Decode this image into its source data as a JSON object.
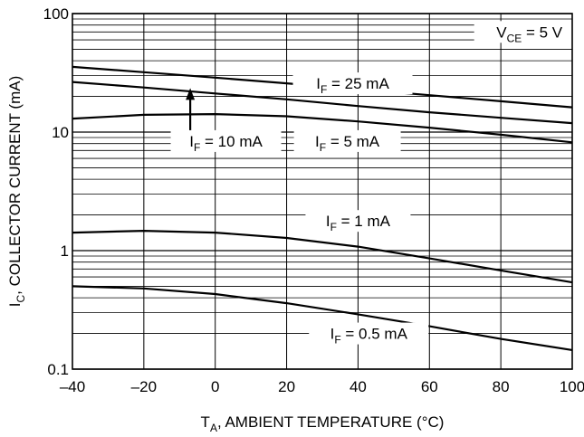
{
  "chart_data": {
    "type": "line",
    "title": "",
    "x_axis": {
      "label_main": "T",
      "label_sub": "A",
      "label_rest": ", AMBIENT TEMPERATURE (°C)",
      "range": [
        -40,
        100
      ],
      "ticks": [
        -40,
        -20,
        0,
        20,
        40,
        60,
        80,
        100
      ],
      "tick_labels": [
        "–40",
        "–20",
        "0",
        "20",
        "40",
        "60",
        "80",
        "100"
      ]
    },
    "y_axis": {
      "label_main": "I",
      "label_sub": "C",
      "label_rest": ", COLLECTOR CURRENT (mA)",
      "scale": "log",
      "range": [
        0.1,
        100
      ],
      "ticks": [
        0.1,
        1,
        10,
        100
      ],
      "tick_labels": [
        "0.1",
        "1",
        "10",
        "100"
      ]
    },
    "grid": true,
    "series": [
      {
        "name": "IF = 25 mA",
        "x": [
          -40,
          -20,
          0,
          20,
          40,
          60,
          80,
          100
        ],
        "y": [
          35.5,
          32,
          28.8,
          25.8,
          23,
          20.5,
          18.2,
          16.2
        ]
      },
      {
        "name": "IF = 10 mA",
        "x": [
          -40,
          -20,
          0,
          20,
          40,
          60,
          80,
          100
        ],
        "y": [
          26.5,
          23.8,
          21.2,
          18.9,
          16.6,
          14.7,
          13.2,
          11.9
        ]
      },
      {
        "name": "IF = 5 mA",
        "x": [
          -40,
          -20,
          0,
          20,
          40,
          60,
          80,
          100
        ],
        "y": [
          13,
          14,
          14.2,
          13.6,
          12.3,
          10.9,
          9.5,
          8.2
        ]
      },
      {
        "name": "IF = 1 mA",
        "x": [
          -40,
          -20,
          0,
          20,
          40,
          60,
          80,
          100
        ],
        "y": [
          1.42,
          1.47,
          1.42,
          1.28,
          1.08,
          0.86,
          0.68,
          0.54
        ]
      },
      {
        "name": "IF = 0.5 mA",
        "x": [
          -40,
          -20,
          0,
          20,
          40,
          60,
          80,
          100
        ],
        "y": [
          0.5,
          0.48,
          0.43,
          0.36,
          0.29,
          0.23,
          0.18,
          0.145
        ]
      }
    ],
    "annotations": [
      {
        "main": "V",
        "sub": "CE",
        "rest": " = 5 V"
      },
      {
        "main": "I",
        "sub": "F",
        "rest": " = 25 mA"
      },
      {
        "main": "I",
        "sub": "F",
        "rest": " = 10 mA"
      },
      {
        "main": "I",
        "sub": "F",
        "rest": " = 5 mA"
      },
      {
        "main": "I",
        "sub": "F",
        "rest": " = 1 mA"
      },
      {
        "main": "I",
        "sub": "F",
        "rest": " = 0.5 mA"
      }
    ]
  }
}
